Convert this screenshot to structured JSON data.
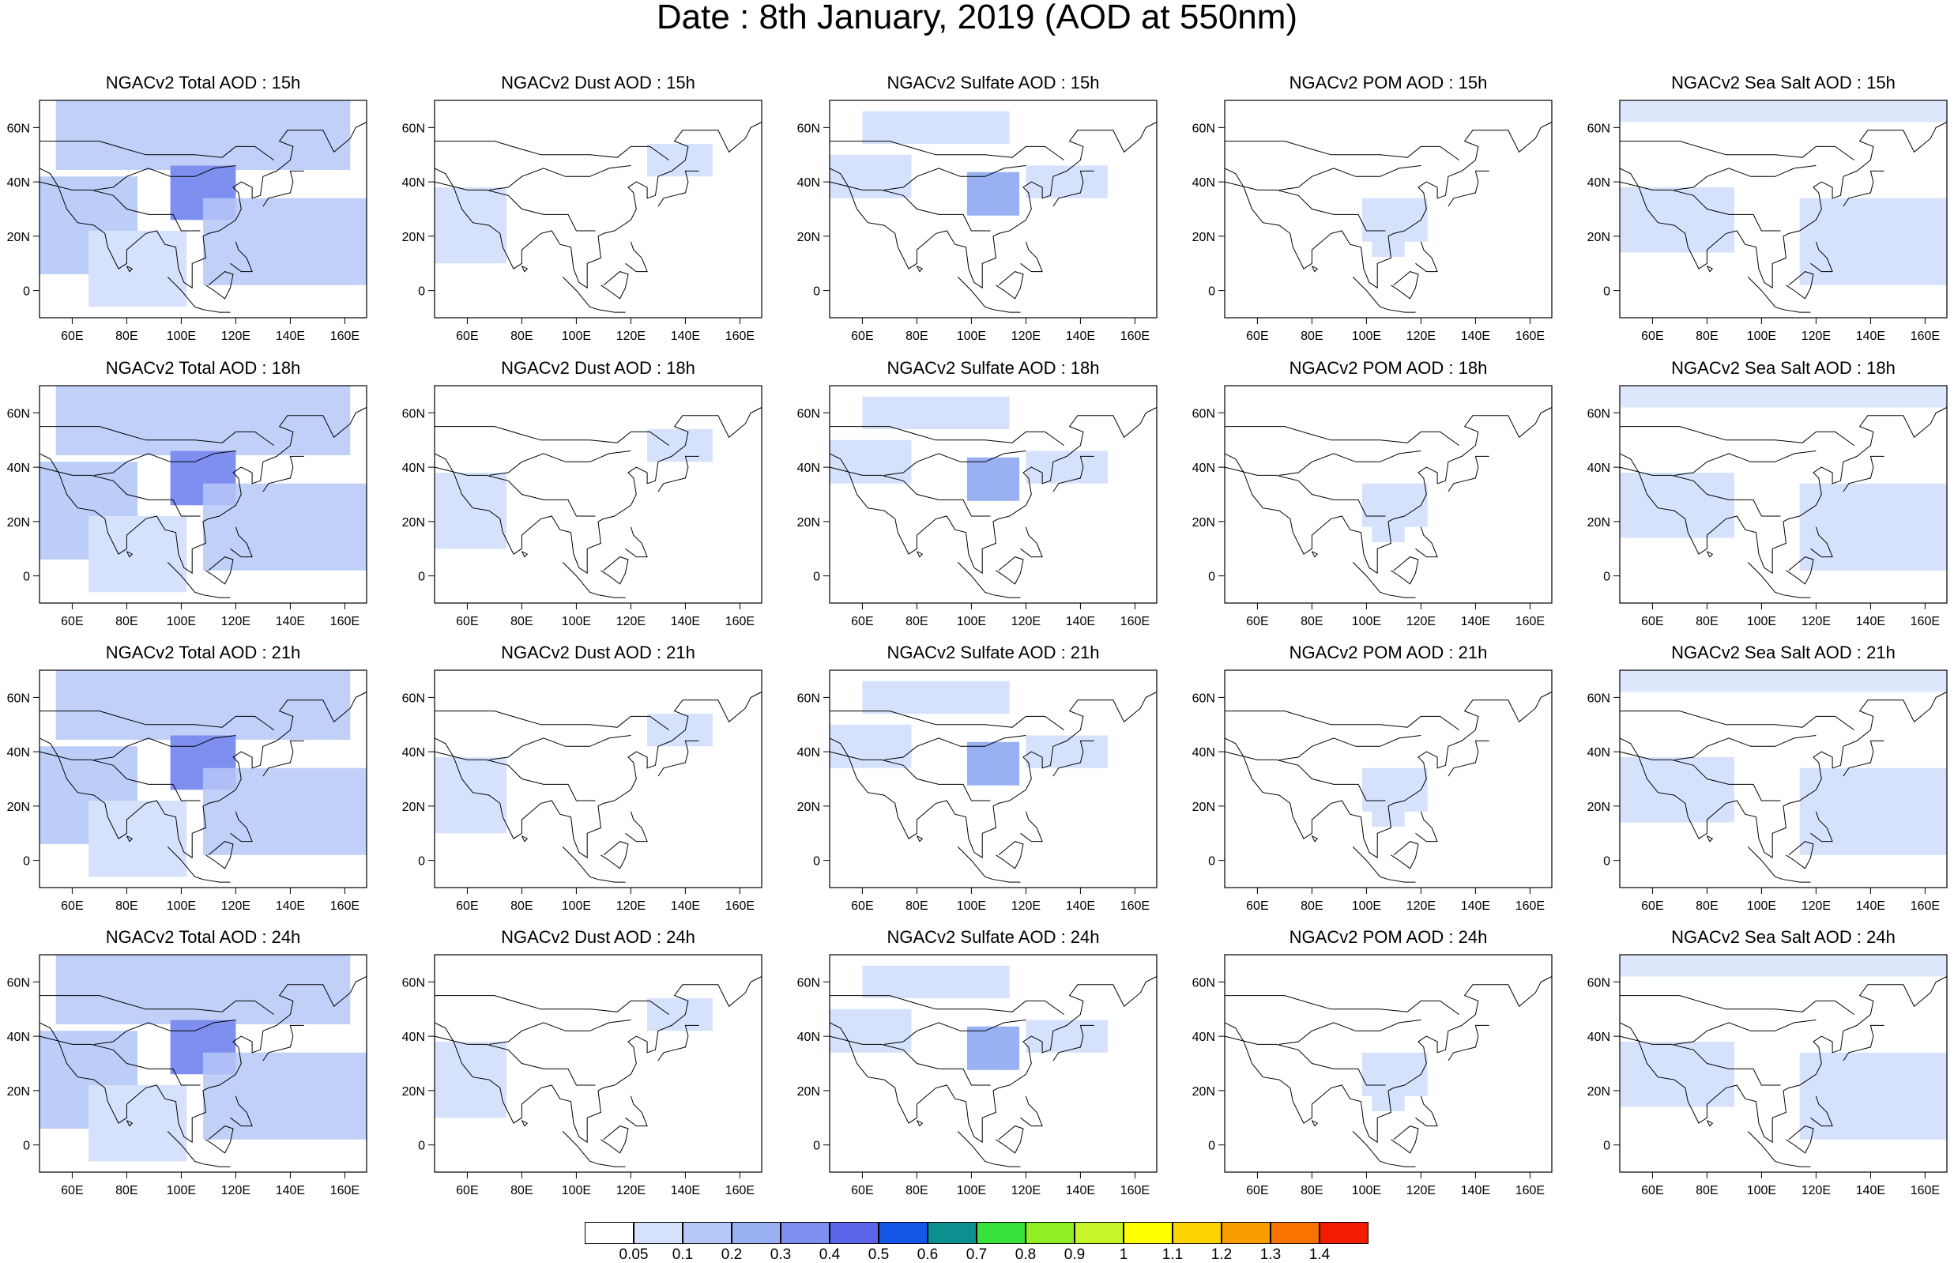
{
  "title": "Date : 8th January, 2019 (AOD at 550nm)",
  "panels": [
    [
      "NGACv2 Total AOD : 15h",
      "NGACv2 Dust AOD : 15h",
      "NGACv2 Sulfate AOD : 15h",
      "NGACv2 POM AOD : 15h",
      "NGACv2 Sea Salt AOD : 15h"
    ],
    [
      "NGACv2 Total AOD : 18h",
      "NGACv2 Dust AOD : 18h",
      "NGACv2 Sulfate AOD : 18h",
      "NGACv2 POM AOD : 18h",
      "NGACv2 Sea Salt AOD : 18h"
    ],
    [
      "NGACv2 Total AOD : 21h",
      "NGACv2 Dust AOD : 21h",
      "NGACv2 Sulfate AOD : 21h",
      "NGACv2 POM AOD : 21h",
      "NGACv2 Sea Salt AOD : 21h"
    ],
    [
      "NGACv2 Total AOD : 24h",
      "NGACv2 Dust AOD : 24h",
      "NGACv2 Sulfate AOD : 24h",
      "NGACv2 POM AOD : 24h",
      "NGACv2 Sea Salt  AOD : 24h"
    ]
  ],
  "axes": {
    "lon_ticks": [
      "60E",
      "80E",
      "100E",
      "120E",
      "140E",
      "160E"
    ],
    "lat_ticks": [
      "60N",
      "40N",
      "20N",
      "0"
    ]
  },
  "colorbar": {
    "labels": [
      "0.05",
      "0.1",
      "0.2",
      "0.3",
      "0.4",
      "0.5",
      "0.6",
      "0.7",
      "0.8",
      "0.9",
      "1",
      "1.1",
      "1.2",
      "1.3",
      "1.4"
    ],
    "colors": [
      "#ffffff",
      "#d6e2fb",
      "#b5c8f7",
      "#99b0f3",
      "#7f8ff0",
      "#5c66ea",
      "#1457e8",
      "#0c8f8f",
      "#39e23a",
      "#8fee24",
      "#c7f52a",
      "#ffff00",
      "#fdd300",
      "#fa9d00",
      "#f87300",
      "#f21c00"
    ]
  }
}
